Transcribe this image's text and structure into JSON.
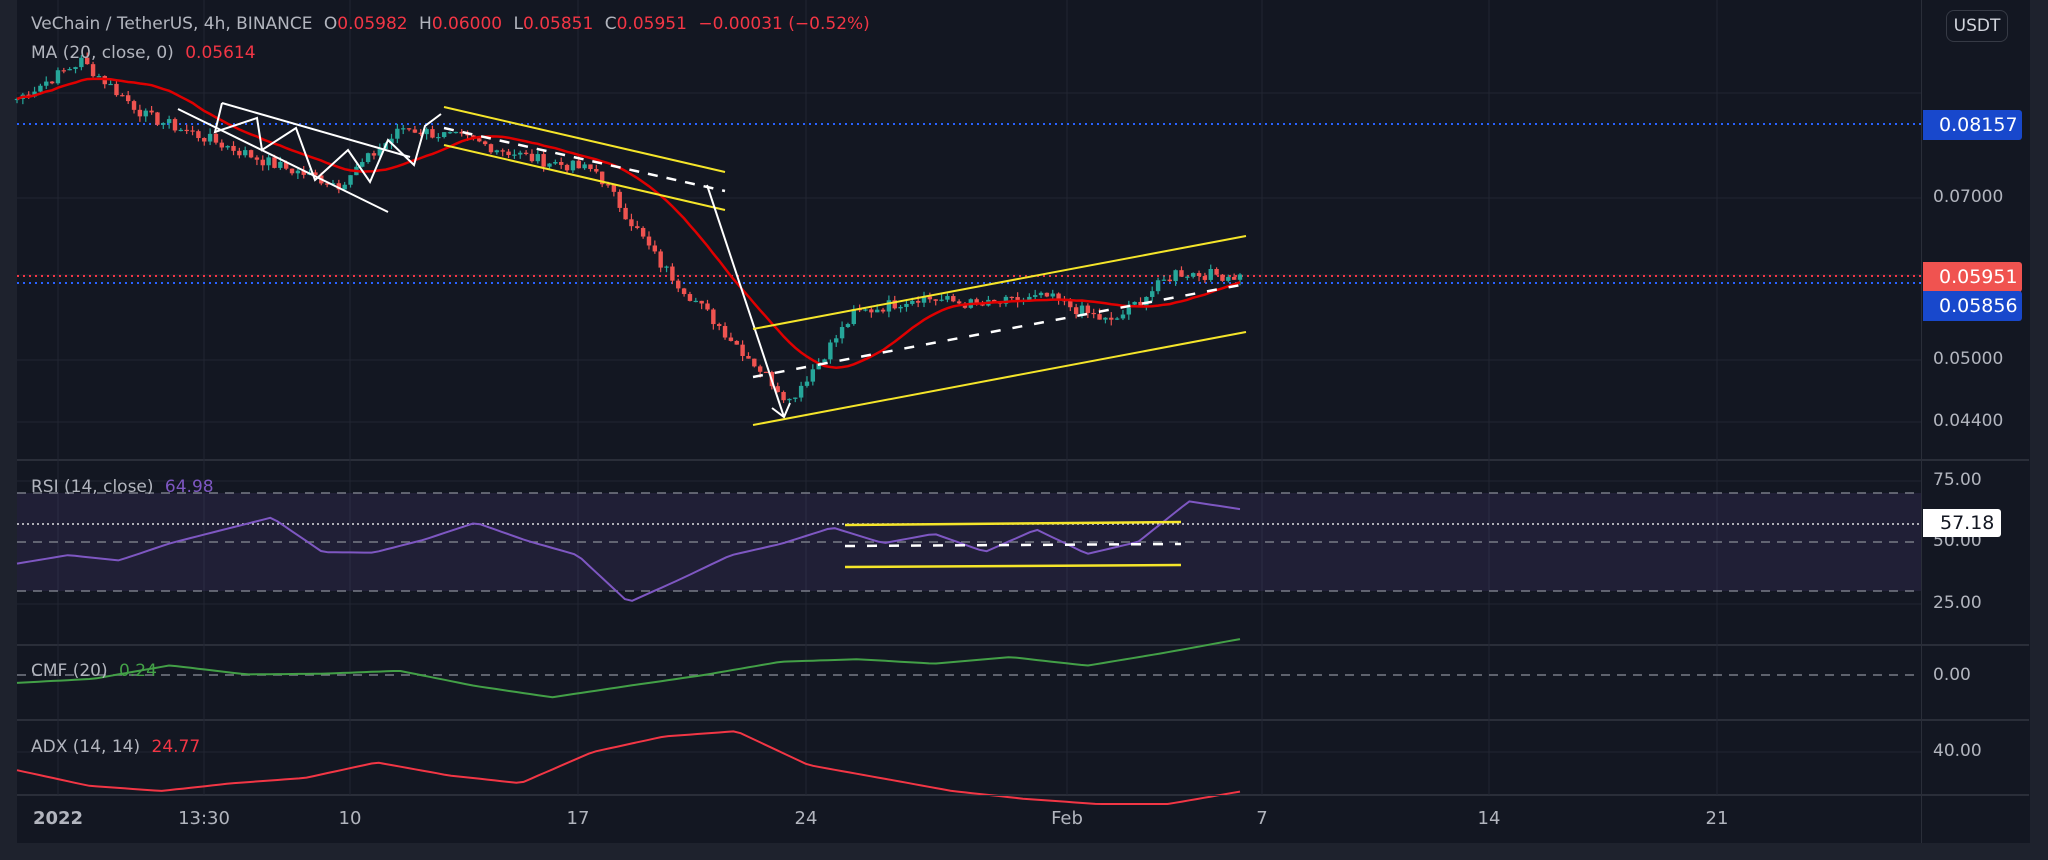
{
  "header": {
    "symbol": "VeChain / TetherUS, 4h, BINANCE",
    "o_label": "O",
    "o_value": "0.05982",
    "h_label": "H",
    "h_value": "0.06000",
    "l_label": "L",
    "l_value": "0.05851",
    "c_label": "C",
    "c_value": "0.05951",
    "change": "−0.00031 (−0.52%)"
  },
  "indicators": {
    "ma": {
      "label": "MA (20, close, 0)",
      "value": "0.05614"
    },
    "rsi": {
      "label": "RSI (14, close)",
      "value": "64.98"
    },
    "cmf": {
      "label": "CMF (20)",
      "value": "0.24"
    },
    "adx": {
      "label": "ADX (14, 14)",
      "value": "24.77"
    }
  },
  "price_axis": {
    "unit_button": "USDT",
    "ticks": [
      "0.07000",
      "0.05000",
      "0.04400"
    ],
    "badges": {
      "level_high": "0.08157",
      "last_price": "0.05951",
      "level_low": "0.05856"
    }
  },
  "rsi_axis": {
    "ticks": [
      "75.00",
      "50.00",
      "25.00"
    ],
    "badge": "57.18"
  },
  "cmf_axis": {
    "ticks": [
      "0.00"
    ]
  },
  "adx_axis": {
    "ticks": [
      "40.00"
    ]
  },
  "time_axis": {
    "ticks": [
      "2022",
      "13:30",
      "10",
      "17",
      "24",
      "Feb",
      "7",
      "14",
      "21"
    ]
  },
  "colors": {
    "up": "#26a69a",
    "down": "#ef5350",
    "ma": "#e00000",
    "rsi": "#7e57c2",
    "cmf": "#43a047",
    "adx": "#f23645",
    "trendline_yellow": "#f5e52a",
    "trendline_white": "#ffffff",
    "badge_blue": "#1848cc",
    "badge_red": "#f05350"
  },
  "chart_data": [
    {
      "type": "candlestick",
      "title": "VeChain / TetherUS, 4h, BINANCE",
      "xlabel": "",
      "ylabel": "USDT",
      "y_scale": "log",
      "ylim": [
        0.042,
        0.095
      ],
      "x_ticks": [
        "2022",
        "13:30",
        "10",
        "17",
        "24",
        "Feb",
        "7",
        "14",
        "21"
      ],
      "y_ticks": [
        0.07,
        0.05,
        0.044
      ],
      "last": {
        "open": 0.05982,
        "high": 0.06,
        "low": 0.05851,
        "close": 0.05951,
        "change": -0.00031,
        "change_pct": -0.52
      },
      "horizontal_levels": [
        0.08157,
        0.05951,
        0.05856
      ],
      "approx_close_path": {
        "dates": [
          "Jan 1",
          "Jan 4",
          "Jan 5",
          "Jan 7",
          "Jan 9",
          "Jan 11",
          "Jan 13",
          "Jan 15",
          "Jan 18",
          "Jan 20",
          "Jan 21",
          "Jan 22",
          "Jan 24",
          "Jan 26",
          "Jan 28",
          "Jan 31",
          "Feb 2",
          "Feb 4",
          "Feb 5",
          "Feb 6"
        ],
        "close": [
          0.086,
          0.093,
          0.083,
          0.079,
          0.075,
          0.072,
          0.081,
          0.079,
          0.076,
          0.074,
          0.061,
          0.053,
          0.046,
          0.055,
          0.057,
          0.056,
          0.057,
          0.054,
          0.06,
          0.0595
        ]
      },
      "ma20_value": 0.05614,
      "annotations": [
        "falling wedge (white)",
        "descending channel (yellow)",
        "ascending channel (yellow)",
        "dashed midlines (white)",
        "down arrow into Jan 22 low"
      ]
    },
    {
      "type": "line",
      "title": "RSI (14, close)",
      "ylim": [
        0,
        100
      ],
      "y_ticks": [
        75,
        50,
        25
      ],
      "last": 64.98,
      "marker_level": 57.18,
      "approx_values": [
        40,
        45,
        38,
        50,
        55,
        64,
        42,
        45,
        52,
        60,
        48,
        42,
        20,
        30,
        42,
        52,
        55,
        48,
        52,
        47,
        58,
        45,
        48,
        70,
        64.98
      ],
      "annotations": [
        "RSI range box (yellow) ~42–58"
      ]
    },
    {
      "type": "line",
      "title": "CMF (20)",
      "y_ticks": [
        0.0
      ],
      "last": 0.24,
      "approx_values": [
        -0.05,
        -0.02,
        0.06,
        0.02,
        0.0,
        0.03,
        -0.08,
        -0.15,
        -0.08,
        0.02,
        0.1,
        0.12,
        0.1,
        0.13,
        0.08,
        0.14,
        0.24
      ]
    },
    {
      "type": "line",
      "title": "ADX (14, 14)",
      "y_ticks": [
        40.0
      ],
      "last": 24.77,
      "approx_values": [
        33,
        27,
        25,
        28,
        30,
        36,
        31,
        28,
        40,
        46,
        48,
        35,
        30,
        25,
        22,
        20,
        20,
        24.77
      ]
    }
  ]
}
